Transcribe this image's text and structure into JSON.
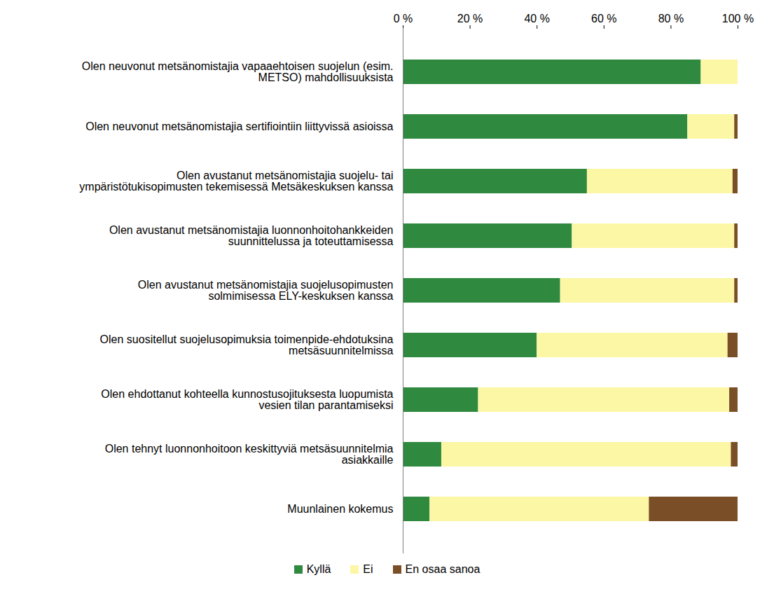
{
  "chart_data": {
    "type": "bar",
    "orientation": "horizontal",
    "stacked": true,
    "grid": false,
    "legend": "bottom",
    "categories": [
      "Olen neuvonut metsänomistajia vapaaehtoisen suojelun (esim. METSO) mahdollisuuksista",
      "Olen neuvonut metsänomistajia sertifiointiin liittyvissä asioissa",
      "Olen avustanut metsänomistajia suojelu- tai ympäristötukisopimusten tekemisessä Metsäkeskuksen kanssa",
      "Olen avustanut metsänomistajia luonnonhoitohankkeiden suunnittelussa ja toteuttamisessa",
      "Olen avustanut metsänomistajia suojelusopimusten solmimisessa ELY-keskuksen kanssa",
      "Olen suositellut suojelusopimuksia toimenpide-ehdotuksina metsäsuunnitelmissa",
      "Olen ehdottanut kohteella kunnostusojituksesta luopumista vesien tilan parantamiseksi",
      "Olen tehnyt luonnonhoitoon keskittyviä metsäsuunnitelmia asiakkaille",
      "Muunlainen kokemus"
    ],
    "series": [
      {
        "name": "Kyllä",
        "color": "#2f8a3f",
        "values": [
          89,
          85,
          55,
          50.5,
          47,
          40,
          22.5,
          11.5,
          8
        ]
      },
      {
        "name": "Ei",
        "color": "#fbf7a5",
        "values": [
          11,
          14,
          43.5,
          48.5,
          52,
          57,
          75,
          86.5,
          65.5
        ]
      },
      {
        "name": "En osaa sanoa",
        "color": "#7a4e27",
        "values": [
          0,
          1,
          1.5,
          1,
          1,
          3,
          2.5,
          2,
          26.5
        ]
      }
    ],
    "xlim": [
      0,
      100
    ],
    "xticks": [
      {
        "value": 0,
        "label": "0 %"
      },
      {
        "value": 20,
        "label": "20 %"
      },
      {
        "value": 40,
        "label": "40 %"
      },
      {
        "value": 60,
        "label": "60 %"
      },
      {
        "value": 80,
        "label": "80 %"
      },
      {
        "value": 100,
        "label": "100 %"
      }
    ]
  }
}
